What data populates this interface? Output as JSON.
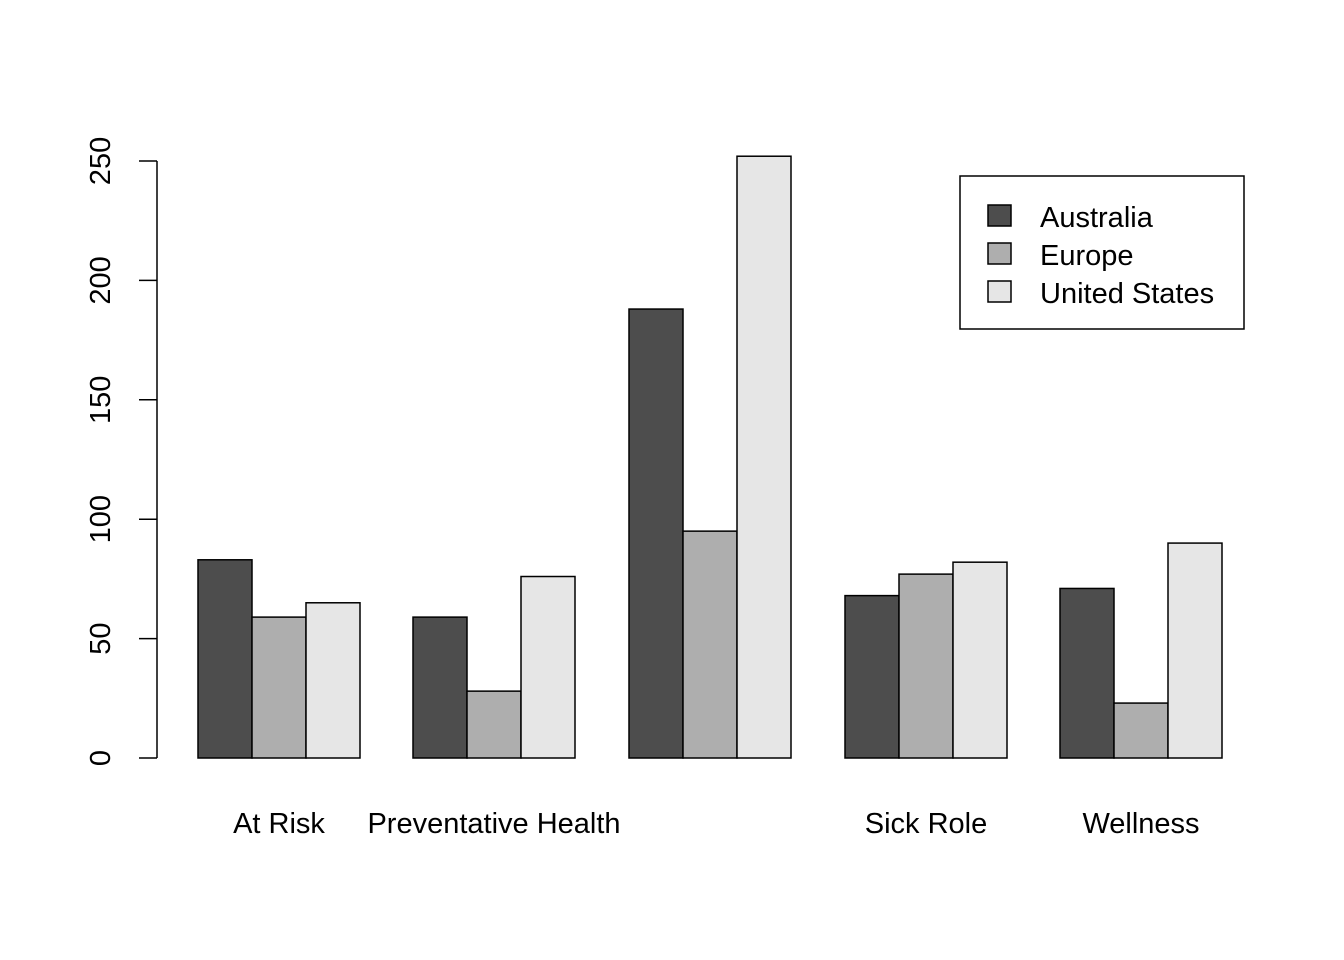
{
  "chart_data": {
    "type": "bar",
    "title": "",
    "xlabel": "",
    "ylabel": "",
    "categories": [
      "At Risk",
      "Preventative Health",
      "",
      "Sick Role",
      "Wellness"
    ],
    "series": [
      {
        "name": "Australia",
        "color": "#4d4d4d",
        "values": [
          83,
          59,
          188,
          68,
          71
        ]
      },
      {
        "name": "Europe",
        "color": "#aeaeae",
        "values": [
          59,
          28,
          95,
          77,
          23
        ]
      },
      {
        "name": "United States",
        "color": "#e6e6e6",
        "values": [
          65,
          76,
          252,
          82,
          90
        ]
      }
    ],
    "yticks": [
      0,
      50,
      100,
      150,
      200,
      250
    ],
    "ylim": [
      0,
      250
    ],
    "grid": false,
    "legend_position": "top-right"
  }
}
